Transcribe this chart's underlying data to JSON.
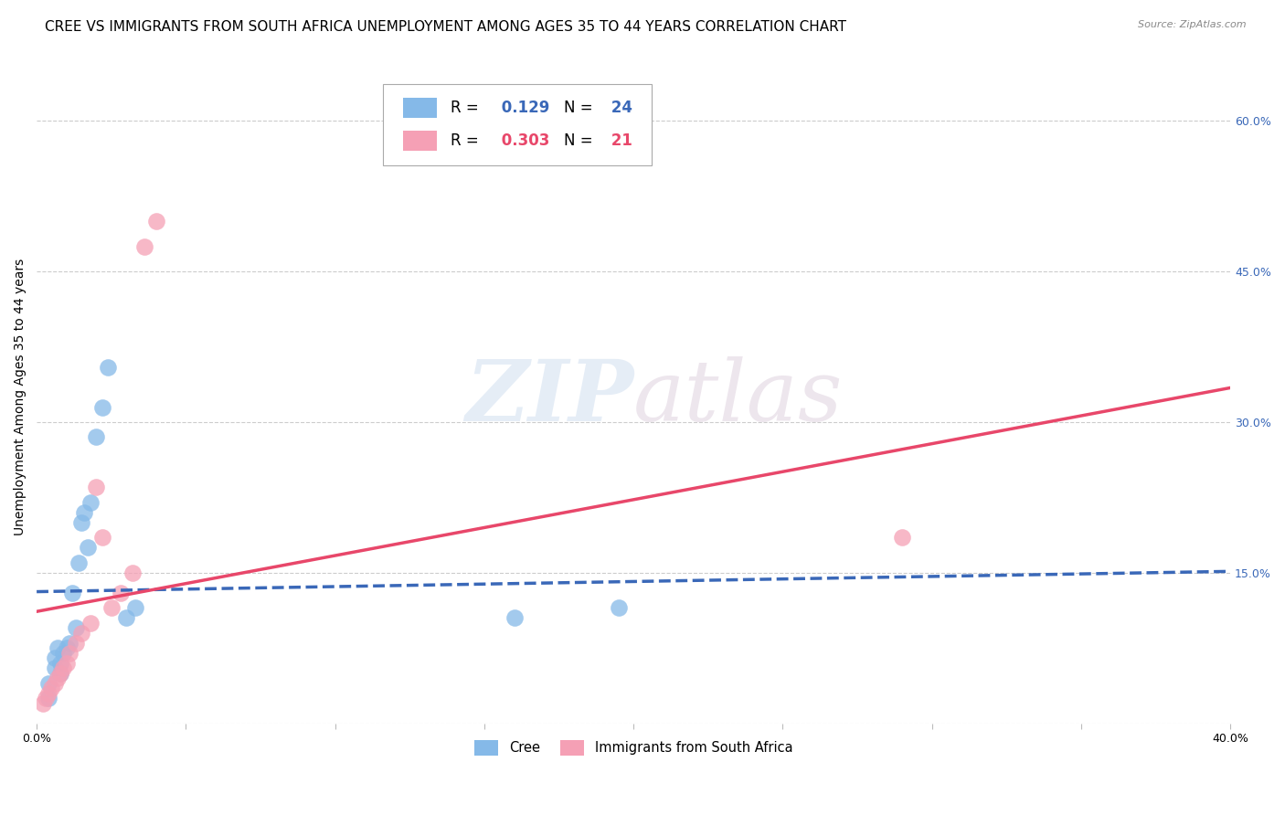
{
  "title": "CREE VS IMMIGRANTS FROM SOUTH AFRICA UNEMPLOYMENT AMONG AGES 35 TO 44 YEARS CORRELATION CHART",
  "source": "Source: ZipAtlas.com",
  "ylabel": "Unemployment Among Ages 35 to 44 years",
  "xlim": [
    0.0,
    0.4
  ],
  "ylim": [
    0.0,
    0.65
  ],
  "x_ticks": [
    0.0,
    0.05,
    0.1,
    0.15,
    0.2,
    0.25,
    0.3,
    0.35,
    0.4
  ],
  "y_ticks_right": [
    0.6,
    0.45,
    0.3,
    0.15,
    0.0
  ],
  "y_tick_labels_right": [
    "60.0%",
    "45.0%",
    "30.0%",
    "15.0%",
    ""
  ],
  "watermark_zip": "ZIP",
  "watermark_atlas": "atlas",
  "cree_color": "#85b9e8",
  "cree_line_color": "#3a68b8",
  "immigrants_color": "#f5a0b5",
  "immigrants_line_color": "#e8476a",
  "legend_R_cree": "0.129",
  "legend_N_cree": "24",
  "legend_R_immigrants": "0.303",
  "legend_N_immigrants": "21",
  "cree_scatter_x": [
    0.004,
    0.004,
    0.006,
    0.006,
    0.007,
    0.008,
    0.008,
    0.009,
    0.01,
    0.011,
    0.012,
    0.013,
    0.014,
    0.015,
    0.016,
    0.017,
    0.018,
    0.02,
    0.022,
    0.024,
    0.03,
    0.033,
    0.16,
    0.195
  ],
  "cree_scatter_y": [
    0.025,
    0.04,
    0.055,
    0.065,
    0.075,
    0.05,
    0.06,
    0.07,
    0.075,
    0.08,
    0.13,
    0.095,
    0.16,
    0.2,
    0.21,
    0.175,
    0.22,
    0.285,
    0.315,
    0.355,
    0.105,
    0.115,
    0.105,
    0.115
  ],
  "immigrants_scatter_x": [
    0.002,
    0.003,
    0.004,
    0.005,
    0.006,
    0.007,
    0.008,
    0.009,
    0.01,
    0.011,
    0.013,
    0.015,
    0.018,
    0.02,
    0.022,
    0.025,
    0.028,
    0.032,
    0.036,
    0.04,
    0.29
  ],
  "immigrants_scatter_y": [
    0.02,
    0.025,
    0.03,
    0.035,
    0.04,
    0.045,
    0.05,
    0.055,
    0.06,
    0.07,
    0.08,
    0.09,
    0.1,
    0.235,
    0.185,
    0.115,
    0.13,
    0.15,
    0.475,
    0.5,
    0.185
  ],
  "grid_color": "#cccccc",
  "background_color": "#ffffff",
  "title_fontsize": 11,
  "axis_label_fontsize": 10,
  "tick_fontsize": 9
}
